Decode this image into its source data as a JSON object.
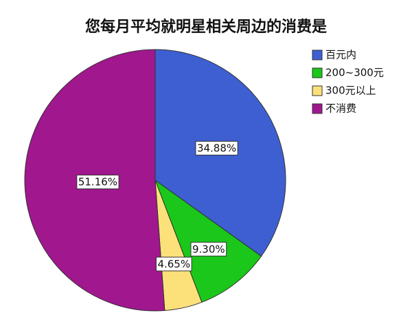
{
  "chart_data": {
    "type": "pie",
    "title": "您每月平均就明星相关周边的消费是",
    "categories": [
      "百元内",
      "200~300元",
      "300元以上",
      "不消费"
    ],
    "values": [
      34.88,
      9.3,
      4.65,
      51.16
    ],
    "value_labels": [
      "34.88%",
      "9.30%",
      "4.65%",
      "51.16%"
    ],
    "colors": [
      "#3d5fd2",
      "#1ac71a",
      "#fce17a",
      "#a0178e"
    ],
    "legend": "right"
  }
}
